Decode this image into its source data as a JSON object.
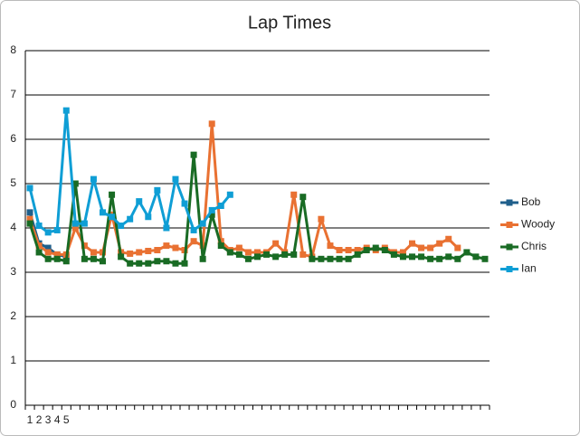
{
  "chart_data": {
    "type": "line",
    "title": "Lap Times",
    "categories": [
      "1",
      "2",
      "3",
      "4",
      "5",
      null,
      null,
      null,
      null,
      null,
      null,
      null,
      null,
      null,
      null,
      null,
      null,
      null,
      null,
      null,
      null,
      null,
      null,
      null,
      null,
      null,
      null,
      null,
      null,
      null,
      null,
      null,
      null,
      null,
      null,
      null,
      null,
      null,
      null,
      null,
      null,
      null,
      null,
      null,
      null,
      null,
      null,
      null,
      null,
      null,
      null
    ],
    "ylim": [
      0,
      8
    ],
    "yticks": [
      0,
      1,
      2,
      3,
      4,
      5,
      6,
      7,
      8
    ],
    "grid": true,
    "legend": "right",
    "series": [
      {
        "name": "Bob",
        "color": "#1f5f8b",
        "values": [
          4.35,
          3.65,
          3.55,
          3.4,
          3.35,
          null,
          null,
          null,
          null,
          null,
          null,
          null,
          null,
          null,
          null,
          null,
          null,
          null,
          null,
          null,
          null,
          null,
          null,
          null,
          null,
          null,
          null,
          null,
          null,
          null,
          null,
          null,
          null,
          null,
          null,
          null,
          null,
          null,
          null,
          null,
          null,
          null,
          null,
          null,
          null,
          null,
          null,
          null,
          null,
          null,
          null
        ]
      },
      {
        "name": "Woody",
        "color": "#e97132",
        "values": [
          4.2,
          3.6,
          3.45,
          3.4,
          3.4,
          4.0,
          3.6,
          3.45,
          3.45,
          4.3,
          3.45,
          3.42,
          3.45,
          3.48,
          3.5,
          3.6,
          3.55,
          3.5,
          3.7,
          3.6,
          6.35,
          3.7,
          3.5,
          3.55,
          3.45,
          3.45,
          3.45,
          3.65,
          3.45,
          4.75,
          3.4,
          3.35,
          4.2,
          3.6,
          3.5,
          3.5,
          3.5,
          3.55,
          3.5,
          3.55,
          3.45,
          3.45,
          3.65,
          3.55,
          3.55,
          3.65,
          3.75,
          3.55,
          null,
          null,
          null
        ]
      },
      {
        "name": "Chris",
        "color": "#196b24",
        "values": [
          4.1,
          3.45,
          3.3,
          3.3,
          3.25,
          5.0,
          3.3,
          3.3,
          3.25,
          4.75,
          3.35,
          3.2,
          3.2,
          3.2,
          3.25,
          3.25,
          3.2,
          3.2,
          5.65,
          3.3,
          4.3,
          3.6,
          3.45,
          3.4,
          3.3,
          3.35,
          3.4,
          3.35,
          3.4,
          3.4,
          4.7,
          3.3,
          3.3,
          3.3,
          3.3,
          3.3,
          3.4,
          3.5,
          3.55,
          3.5,
          3.4,
          3.35,
          3.35,
          3.35,
          3.3,
          3.3,
          3.35,
          3.3,
          3.45,
          3.35,
          3.3
        ]
      },
      {
        "name": "Ian",
        "color": "#0f9ed5",
        "values": [
          4.9,
          4.05,
          3.9,
          3.95,
          6.65,
          4.1,
          4.1,
          5.1,
          4.35,
          4.25,
          4.05,
          4.2,
          4.6,
          4.25,
          4.85,
          4.0,
          5.1,
          4.55,
          3.95,
          4.1,
          4.4,
          4.5,
          4.75,
          null,
          null,
          null,
          null,
          null,
          null,
          null,
          null,
          null,
          null,
          null,
          null,
          null,
          null,
          null,
          null,
          null,
          null,
          null,
          null,
          null,
          null,
          null,
          null,
          null,
          null,
          null,
          null
        ]
      }
    ]
  }
}
